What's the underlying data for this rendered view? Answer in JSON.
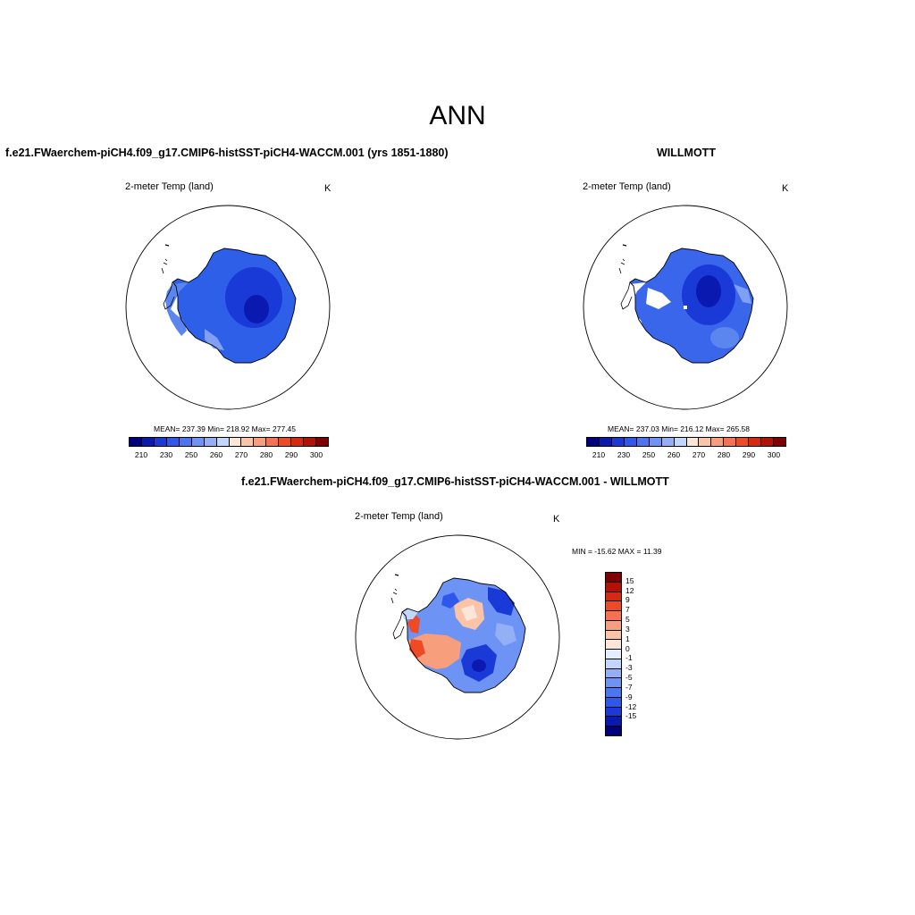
{
  "title": "ANN",
  "panels": [
    {
      "title": "f.e21.FWaerchem-piCH4.f09_g17.CMIP6-histSST-piCH4-WACCM.001 (yrs 1851-1880)",
      "variable": "2-meter Temp (land)",
      "units": "K",
      "stats": "MEAN= 237.39  Min= 218.92  Max= 277.45"
    },
    {
      "title": "WILLMOTT",
      "variable": "2-meter Temp (land)",
      "units": "K",
      "stats": "MEAN= 237.03  Min= 216.12  Max= 265.58"
    },
    {
      "title": "f.e21.FWaerchem-piCH4.f09_g17.CMIP6-histSST-piCH4-WACCM.001 - WILLMOTT",
      "variable": "2-meter Temp (land)",
      "units": "K",
      "stats": "MIN = -15.62 MAX =  11.39"
    }
  ],
  "abs_colorbar": {
    "colors": [
      "#00007f",
      "#0a1ab0",
      "#1a3ad8",
      "#2e58ec",
      "#4a76f0",
      "#6d93f4",
      "#93b0f7",
      "#c2d5fa",
      "#fde5d8",
      "#fbc3a8",
      "#f79e7c",
      "#f47250",
      "#ee4a26",
      "#d62a10",
      "#b01208",
      "#7f0000"
    ],
    "ticks": [
      "210",
      "230",
      "250",
      "260",
      "270",
      "280",
      "290",
      "300"
    ]
  },
  "diff_colorbar": {
    "colors": [
      "#7f0000",
      "#b01208",
      "#d62a10",
      "#ee4a26",
      "#f47250",
      "#f79e7c",
      "#fbc3a8",
      "#fde5d8",
      "#e3eefc",
      "#c2d5fa",
      "#93b0f7",
      "#6d93f4",
      "#4a76f0",
      "#2e58ec",
      "#1a3ad8",
      "#0a1ab0",
      "#00007f"
    ],
    "ticks": [
      "15",
      "12",
      "9",
      "7",
      "5",
      "3",
      "1",
      "0",
      "-1",
      "-3",
      "-5",
      "-7",
      "-9",
      "-12",
      "-15"
    ]
  }
}
